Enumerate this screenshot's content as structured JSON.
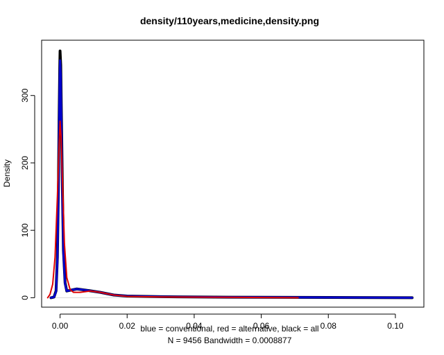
{
  "chart_data": {
    "type": "line",
    "title": "density/110years,medicine,density.png",
    "xlabel": "blue = conventional, red = alternative, black = all",
    "sublabel": "N = 9456   Bandwidth = 0.0008877",
    "ylabel": "Density",
    "xlim": [
      -0.0055,
      0.1085
    ],
    "ylim": [
      -14,
      382
    ],
    "x_ticks": [
      0.0,
      0.02,
      0.04,
      0.06,
      0.08,
      0.1
    ],
    "x_tick_labels": [
      "0.00",
      "0.02",
      "0.04",
      "0.06",
      "0.08",
      "0.10"
    ],
    "y_ticks": [
      0,
      100,
      200,
      300
    ],
    "y_tick_labels": [
      "0",
      "100",
      "200",
      "300"
    ],
    "grid": false,
    "series": [
      {
        "color": "#000000",
        "line_width": 4,
        "points": [
          [
            -0.0027,
            0
          ],
          [
            -0.0018,
            1
          ],
          [
            -0.0012,
            10
          ],
          [
            -0.0008,
            60
          ],
          [
            -0.0005,
            160
          ],
          [
            -0.0003,
            260
          ],
          [
            -0.0001,
            340
          ],
          [
            0.0,
            366
          ],
          [
            0.0002,
            345
          ],
          [
            0.0004,
            270
          ],
          [
            0.0007,
            160
          ],
          [
            0.001,
            70
          ],
          [
            0.0015,
            22
          ],
          [
            0.002,
            10
          ],
          [
            0.003,
            11
          ],
          [
            0.005,
            13
          ],
          [
            0.008,
            11
          ],
          [
            0.012,
            8
          ],
          [
            0.016,
            4
          ],
          [
            0.02,
            2.5
          ],
          [
            0.03,
            1.5
          ],
          [
            0.05,
            0.8
          ],
          [
            0.08,
            0.4
          ],
          [
            0.105,
            0
          ]
        ]
      },
      {
        "color": "#0000cc",
        "line_width": 3,
        "points": [
          [
            -0.0027,
            0
          ],
          [
            -0.0018,
            1
          ],
          [
            -0.0012,
            9
          ],
          [
            -0.0008,
            55
          ],
          [
            -0.0005,
            150
          ],
          [
            -0.0003,
            250
          ],
          [
            -0.0001,
            330
          ],
          [
            0.0,
            352
          ],
          [
            0.0002,
            330
          ],
          [
            0.0004,
            255
          ],
          [
            0.0007,
            150
          ],
          [
            0.001,
            65
          ],
          [
            0.0015,
            20
          ],
          [
            0.002,
            10
          ],
          [
            0.003,
            11
          ],
          [
            0.005,
            13
          ],
          [
            0.008,
            11
          ],
          [
            0.012,
            8
          ],
          [
            0.016,
            4
          ],
          [
            0.02,
            2.5
          ],
          [
            0.03,
            1.5
          ],
          [
            0.05,
            0.8
          ],
          [
            0.08,
            0.4
          ],
          [
            0.105,
            0
          ]
        ]
      },
      {
        "color": "#dd0000",
        "line_width": 2,
        "points": [
          [
            -0.0037,
            0
          ],
          [
            -0.003,
            5
          ],
          [
            -0.0022,
            20
          ],
          [
            -0.0015,
            60
          ],
          [
            -0.0008,
            150
          ],
          [
            -0.0003,
            225
          ],
          [
            0.0,
            262
          ],
          [
            0.0003,
            240
          ],
          [
            0.0008,
            160
          ],
          [
            0.0013,
            80
          ],
          [
            0.002,
            30
          ],
          [
            0.003,
            12
          ],
          [
            0.004,
            8
          ],
          [
            0.006,
            8
          ],
          [
            0.009,
            10
          ],
          [
            0.012,
            8
          ],
          [
            0.016,
            4
          ],
          [
            0.02,
            2
          ],
          [
            0.03,
            1.2
          ],
          [
            0.05,
            0.6
          ],
          [
            0.071,
            0
          ]
        ]
      }
    ]
  }
}
